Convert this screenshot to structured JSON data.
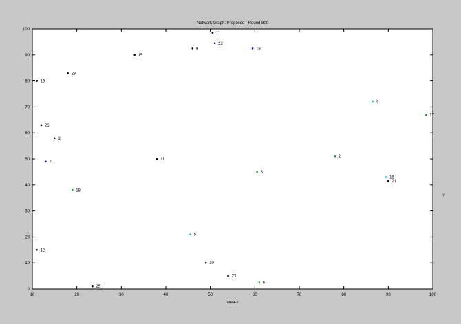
{
  "chart_data": {
    "type": "scatter",
    "title": "Network Graph: Proposed - Round 800",
    "xlabel": "area-x",
    "ylabel": "Y",
    "xlim": [
      10,
      100
    ],
    "ylim": [
      0,
      100
    ],
    "x_ticks": [
      10,
      20,
      30,
      40,
      50,
      60,
      70,
      80,
      90,
      100
    ],
    "y_ticks": [
      0,
      10,
      20,
      30,
      40,
      50,
      60,
      70,
      80,
      90,
      100
    ],
    "grid": false,
    "points": [
      {
        "label": "11",
        "x": 50.5,
        "y": 98.5,
        "color": "#000000"
      },
      {
        "label": "9",
        "x": 46.0,
        "y": 92.5,
        "color": "#000000"
      },
      {
        "label": "15",
        "x": 33.0,
        "y": 90.0,
        "color": "#000000"
      },
      {
        "label": "22",
        "x": 51.0,
        "y": 94.5,
        "color": "#0000ff"
      },
      {
        "label": "18",
        "x": 59.5,
        "y": 92.5,
        "color": "#0000ff"
      },
      {
        "label": "28",
        "x": 18.0,
        "y": 83.0,
        "color": "#000000"
      },
      {
        "label": "19",
        "x": 11.0,
        "y": 80.0,
        "color": "#000000"
      },
      {
        "label": "4",
        "x": 86.5,
        "y": 72.0,
        "color": "#00cccc"
      },
      {
        "label": "17",
        "x": 98.5,
        "y": 67.0,
        "color": "#00aa00"
      },
      {
        "label": "26",
        "x": 12.0,
        "y": 63.0,
        "color": "#000000"
      },
      {
        "label": "3",
        "x": 15.0,
        "y": 58.0,
        "color": "#000000"
      },
      {
        "label": "7",
        "x": 13.0,
        "y": 49.0,
        "color": "#0000ff"
      },
      {
        "label": "11",
        "x": 38.0,
        "y": 50.0,
        "color": "#000000"
      },
      {
        "label": "2",
        "x": 78.0,
        "y": 51.0,
        "color": "#00aa00"
      },
      {
        "label": "3",
        "x": 60.5,
        "y": 45.0,
        "color": "#00aa00"
      },
      {
        "label": "16",
        "x": 89.5,
        "y": 43.0,
        "color": "#00cccc"
      },
      {
        "label": "21",
        "x": 90.0,
        "y": 41.5,
        "color": "#000000"
      },
      {
        "label": "18",
        "x": 19.0,
        "y": 38.0,
        "color": "#00aa00"
      },
      {
        "label": "5",
        "x": 45.5,
        "y": 21.0,
        "color": "#00cccc"
      },
      {
        "label": "12",
        "x": 11.0,
        "y": 15.0,
        "color": "#000000"
      },
      {
        "label": "10",
        "x": 49.0,
        "y": 10.0,
        "color": "#000000"
      },
      {
        "label": "23",
        "x": 54.0,
        "y": 5.0,
        "color": "#000000"
      },
      {
        "label": "6",
        "x": 61.0,
        "y": 2.5,
        "color": "#00aa00"
      },
      {
        "label": "25",
        "x": 23.5,
        "y": 1.0,
        "color": "#000000"
      }
    ]
  }
}
